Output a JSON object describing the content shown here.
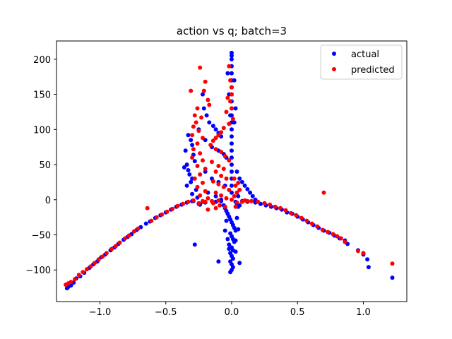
{
  "chart_data": {
    "type": "scatter",
    "title": "action vs q; batch=3",
    "xlabel": "",
    "ylabel": "",
    "xlim": [
      -1.33,
      1.33
    ],
    "ylim": [
      -145,
      226
    ],
    "xticks": [
      -1.0,
      -0.5,
      0.0,
      0.5,
      1.0
    ],
    "xtick_labels": [
      "−1.0",
      "−0.5",
      "0.0",
      "0.5",
      "1.0"
    ],
    "yticks": [
      -100,
      -50,
      0,
      50,
      100,
      150,
      200
    ],
    "ytick_labels": [
      "−100",
      "−50",
      "0",
      "50",
      "100",
      "150",
      "200"
    ],
    "grid": false,
    "legend_position": "top-right",
    "series": [
      {
        "name": "actual",
        "color": "#0000ff",
        "points": [
          [
            -1.25,
            -126
          ],
          [
            -1.24,
            -124
          ],
          [
            -1.22,
            -122
          ],
          [
            -1.2,
            -118
          ],
          [
            -1.18,
            -112
          ],
          [
            -1.15,
            -109
          ],
          [
            -1.12,
            -104
          ],
          [
            -1.08,
            -97
          ],
          [
            -1.05,
            -92
          ],
          [
            -1.02,
            -88
          ],
          [
            -0.99,
            -82
          ],
          [
            -0.96,
            -78
          ],
          [
            -0.92,
            -72
          ],
          [
            -0.89,
            -68
          ],
          [
            -0.86,
            -63
          ],
          [
            -0.82,
            -57
          ],
          [
            -0.79,
            -53
          ],
          [
            -0.76,
            -49
          ],
          [
            -0.72,
            -43
          ],
          [
            -0.69,
            -39
          ],
          [
            -0.65,
            -34
          ],
          [
            -0.62,
            -31
          ],
          [
            -0.58,
            -26
          ],
          [
            -0.54,
            -22
          ],
          [
            -0.5,
            -18
          ],
          [
            -0.46,
            -14
          ],
          [
            -0.42,
            -10
          ],
          [
            -0.38,
            -7
          ],
          [
            -0.34,
            -4
          ],
          [
            -0.3,
            -2
          ],
          [
            -0.28,
            -64
          ],
          [
            -0.25,
            -6
          ],
          [
            -0.2,
            -4
          ],
          [
            -0.12,
            -3
          ],
          [
            -0.08,
            -2
          ],
          [
            0.08,
            -2
          ],
          [
            0.12,
            -3
          ],
          [
            0.18,
            -4
          ],
          [
            0.22,
            -6
          ],
          [
            0.26,
            -8
          ],
          [
            0.3,
            -10
          ],
          [
            0.34,
            -12
          ],
          [
            0.38,
            -14
          ],
          [
            0.42,
            -18
          ],
          [
            0.46,
            -20
          ],
          [
            0.5,
            -24
          ],
          [
            0.54,
            -28
          ],
          [
            0.58,
            -32
          ],
          [
            0.62,
            -36
          ],
          [
            0.66,
            -40
          ],
          [
            0.7,
            -44
          ],
          [
            0.74,
            -47
          ],
          [
            0.78,
            -51
          ],
          [
            0.82,
            -55
          ],
          [
            0.86,
            -58
          ],
          [
            0.88,
            -63
          ],
          [
            0.96,
            -72
          ],
          [
            1.0,
            -78
          ],
          [
            1.03,
            -85
          ],
          [
            1.04,
            -96
          ],
          [
            1.22,
            -111
          ],
          [
            0.0,
            209
          ],
          [
            0.0,
            205
          ],
          [
            0.0,
            200
          ],
          [
            0.0,
            190
          ],
          [
            0.0,
            180
          ],
          [
            0.0,
            170
          ],
          [
            0.0,
            160
          ],
          [
            0.0,
            150
          ],
          [
            0.0,
            140
          ],
          [
            0.0,
            130
          ],
          [
            0.0,
            120
          ],
          [
            0.0,
            110
          ],
          [
            0.0,
            100
          ],
          [
            0.0,
            90
          ],
          [
            0.0,
            80
          ],
          [
            0.0,
            70
          ],
          [
            0.0,
            60
          ],
          [
            0.0,
            50
          ],
          [
            0.0,
            40
          ],
          [
            0.0,
            30
          ],
          [
            0.0,
            20
          ],
          [
            0.0,
            10
          ],
          [
            -0.03,
            180
          ],
          [
            0.02,
            170
          ],
          [
            -0.02,
            150
          ],
          [
            0.03,
            130
          ],
          [
            -0.01,
            120
          ],
          [
            0.02,
            110
          ],
          [
            -0.33,
            92
          ],
          [
            -0.31,
            85
          ],
          [
            -0.3,
            78
          ],
          [
            -0.35,
            70
          ],
          [
            -0.29,
            64
          ],
          [
            -0.28,
            55
          ],
          [
            -0.34,
            50
          ],
          [
            -0.36,
            46
          ],
          [
            -0.33,
            42
          ],
          [
            -0.32,
            36
          ],
          [
            -0.3,
            30
          ],
          [
            -0.31,
            25
          ],
          [
            -0.34,
            20
          ],
          [
            -0.27,
            14
          ],
          [
            -0.3,
            8
          ],
          [
            -0.26,
            3
          ],
          [
            -0.29,
            -2
          ],
          [
            -0.24,
            -7
          ],
          [
            -0.22,
            -3
          ],
          [
            -0.22,
            150
          ],
          [
            -0.21,
            130
          ],
          [
            -0.19,
            120
          ],
          [
            -0.17,
            110
          ],
          [
            -0.14,
            105
          ],
          [
            -0.12,
            100
          ],
          [
            -0.1,
            95
          ],
          [
            -0.08,
            90
          ],
          [
            -0.25,
            100
          ],
          [
            -0.2,
            85
          ],
          [
            -0.15,
            75
          ],
          [
            -0.1,
            70
          ],
          [
            -0.06,
            65
          ],
          [
            -0.04,
            60
          ],
          [
            -0.2,
            40
          ],
          [
            -0.15,
            30
          ],
          [
            -0.1,
            25
          ],
          [
            -0.05,
            20
          ],
          [
            -0.18,
            10
          ],
          [
            -0.12,
            5
          ],
          [
            -0.08,
            0
          ],
          [
            0.04,
            40
          ],
          [
            0.06,
            30
          ],
          [
            0.08,
            25
          ],
          [
            0.1,
            20
          ],
          [
            0.12,
            15
          ],
          [
            0.14,
            10
          ],
          [
            0.16,
            5
          ],
          [
            0.18,
            0
          ],
          [
            0.05,
            5
          ],
          [
            0.03,
            -3
          ],
          [
            0.06,
            -8
          ],
          [
            -0.06,
            -8
          ],
          [
            -0.05,
            -12
          ],
          [
            -0.04,
            -16
          ],
          [
            -0.03,
            -20
          ],
          [
            -0.02,
            -24
          ],
          [
            -0.01,
            -28
          ],
          [
            0.0,
            -32
          ],
          [
            0.01,
            -36
          ],
          [
            0.02,
            -40
          ],
          [
            0.03,
            -44
          ],
          [
            -0.01,
            -48
          ],
          [
            0.0,
            -52
          ],
          [
            0.01,
            -56
          ],
          [
            0.02,
            -60
          ],
          [
            -0.02,
            -64
          ],
          [
            0.0,
            -68
          ],
          [
            0.01,
            -72
          ],
          [
            -0.01,
            -76
          ],
          [
            0.0,
            -80
          ],
          [
            0.01,
            -84
          ],
          [
            -0.01,
            -88
          ],
          [
            0.0,
            -92
          ],
          [
            0.01,
            -96
          ],
          [
            0.0,
            -100
          ],
          [
            -0.01,
            -103
          ],
          [
            -0.04,
            -30
          ],
          [
            0.04,
            -26
          ],
          [
            -0.05,
            -44
          ],
          [
            0.05,
            -42
          ],
          [
            -0.03,
            -56
          ],
          [
            0.03,
            -58
          ],
          [
            -0.02,
            -70
          ],
          [
            0.03,
            -74
          ],
          [
            -0.1,
            -88
          ],
          [
            0.06,
            -90
          ],
          [
            0.04,
            -6
          ],
          [
            0.05,
            -10
          ]
        ]
      },
      {
        "name": "predicted",
        "color": "#ff0000",
        "points": [
          [
            -1.26,
            -121
          ],
          [
            -1.24,
            -119
          ],
          [
            -1.22,
            -117
          ],
          [
            -1.19,
            -113
          ],
          [
            -1.16,
            -107
          ],
          [
            -1.13,
            -103
          ],
          [
            -1.1,
            -99
          ],
          [
            -1.07,
            -95
          ],
          [
            -1.04,
            -90
          ],
          [
            -1.01,
            -85
          ],
          [
            -0.98,
            -81
          ],
          [
            -0.95,
            -76
          ],
          [
            -0.91,
            -70
          ],
          [
            -0.88,
            -66
          ],
          [
            -0.85,
            -61
          ],
          [
            -0.81,
            -55
          ],
          [
            -0.78,
            -51
          ],
          [
            -0.74,
            -45
          ],
          [
            -0.71,
            -41
          ],
          [
            -0.64,
            -12
          ],
          [
            -0.61,
            -30
          ],
          [
            -0.57,
            -25
          ],
          [
            -0.53,
            -21
          ],
          [
            -0.49,
            -17
          ],
          [
            -0.45,
            -13
          ],
          [
            -0.41,
            -9
          ],
          [
            -0.37,
            -6
          ],
          [
            -0.33,
            -3
          ],
          [
            -0.29,
            -1
          ],
          [
            -0.25,
            -5
          ],
          [
            -0.2,
            -3
          ],
          [
            -0.15,
            -2
          ],
          [
            -0.1,
            -1
          ],
          [
            0.1,
            -1
          ],
          [
            0.15,
            -2
          ],
          [
            0.2,
            -3
          ],
          [
            0.25,
            -5
          ],
          [
            0.29,
            -7
          ],
          [
            0.33,
            -10
          ],
          [
            0.37,
            -12
          ],
          [
            0.41,
            -15
          ],
          [
            0.45,
            -19
          ],
          [
            0.49,
            -22
          ],
          [
            0.53,
            -26
          ],
          [
            0.57,
            -30
          ],
          [
            0.61,
            -34
          ],
          [
            0.65,
            -38
          ],
          [
            0.69,
            -43
          ],
          [
            0.73,
            -46
          ],
          [
            0.77,
            -49
          ],
          [
            0.8,
            -52
          ],
          [
            0.83,
            -55
          ],
          [
            0.86,
            -60
          ],
          [
            0.96,
            -73
          ],
          [
            1.0,
            -76
          ],
          [
            1.22,
            -91
          ],
          [
            0.7,
            10
          ],
          [
            -0.24,
            188
          ],
          [
            -0.31,
            155
          ],
          [
            -0.2,
            168
          ],
          [
            -0.21,
            155
          ],
          [
            -0.18,
            142
          ],
          [
            -0.17,
            135
          ],
          [
            -0.26,
            130
          ],
          [
            -0.28,
            120
          ],
          [
            -0.23,
            117
          ],
          [
            -0.27,
            110
          ],
          [
            -0.29,
            104
          ],
          [
            -0.25,
            98
          ],
          [
            -0.3,
            92
          ],
          [
            -0.22,
            88
          ],
          [
            -0.26,
            80
          ],
          [
            -0.29,
            72
          ],
          [
            -0.24,
            66
          ],
          [
            -0.3,
            60
          ],
          [
            -0.22,
            56
          ],
          [
            -0.26,
            48
          ],
          [
            -0.2,
            44
          ],
          [
            -0.24,
            36
          ],
          [
            -0.28,
            30
          ],
          [
            -0.22,
            24
          ],
          [
            -0.26,
            18
          ],
          [
            -0.2,
            12
          ],
          [
            -0.24,
            6
          ],
          [
            -0.18,
            2
          ],
          [
            -0.22,
            -2
          ],
          [
            -0.02,
            190
          ],
          [
            -0.01,
            170
          ],
          [
            0.0,
            160
          ],
          [
            0.0,
            150
          ],
          [
            -0.01,
            140
          ],
          [
            0.0,
            130
          ],
          [
            -0.03,
            145
          ],
          [
            -0.04,
            125
          ],
          [
            0.01,
            115
          ],
          [
            -0.02,
            108
          ],
          [
            -0.06,
            102
          ],
          [
            -0.08,
            96
          ],
          [
            -0.1,
            92
          ],
          [
            -0.12,
            88
          ],
          [
            -0.14,
            84
          ],
          [
            -0.16,
            78
          ],
          [
            -0.12,
            72
          ],
          [
            -0.08,
            68
          ],
          [
            -0.05,
            62
          ],
          [
            -0.02,
            56
          ],
          [
            -0.15,
            54
          ],
          [
            -0.1,
            48
          ],
          [
            -0.06,
            44
          ],
          [
            -0.12,
            40
          ],
          [
            -0.08,
            34
          ],
          [
            -0.04,
            30
          ],
          [
            -0.14,
            26
          ],
          [
            -0.1,
            22
          ],
          [
            -0.06,
            18
          ],
          [
            -0.02,
            14
          ],
          [
            -0.12,
            10
          ],
          [
            -0.08,
            6
          ],
          [
            -0.04,
            2
          ],
          [
            0.0,
            0
          ],
          [
            0.02,
            5
          ],
          [
            0.04,
            10
          ],
          [
            0.06,
            14
          ],
          [
            0.03,
            20
          ],
          [
            0.05,
            24
          ],
          [
            0.02,
            30
          ],
          [
            0.04,
            -4
          ],
          [
            0.08,
            -3
          ],
          [
            0.12,
            -2
          ],
          [
            -0.05,
            -10
          ],
          [
            -0.09,
            -8
          ],
          [
            -0.14,
            -5
          ],
          [
            -0.18,
            -14
          ],
          [
            -0.12,
            -12
          ],
          [
            0.03,
            -10
          ]
        ]
      }
    ]
  }
}
